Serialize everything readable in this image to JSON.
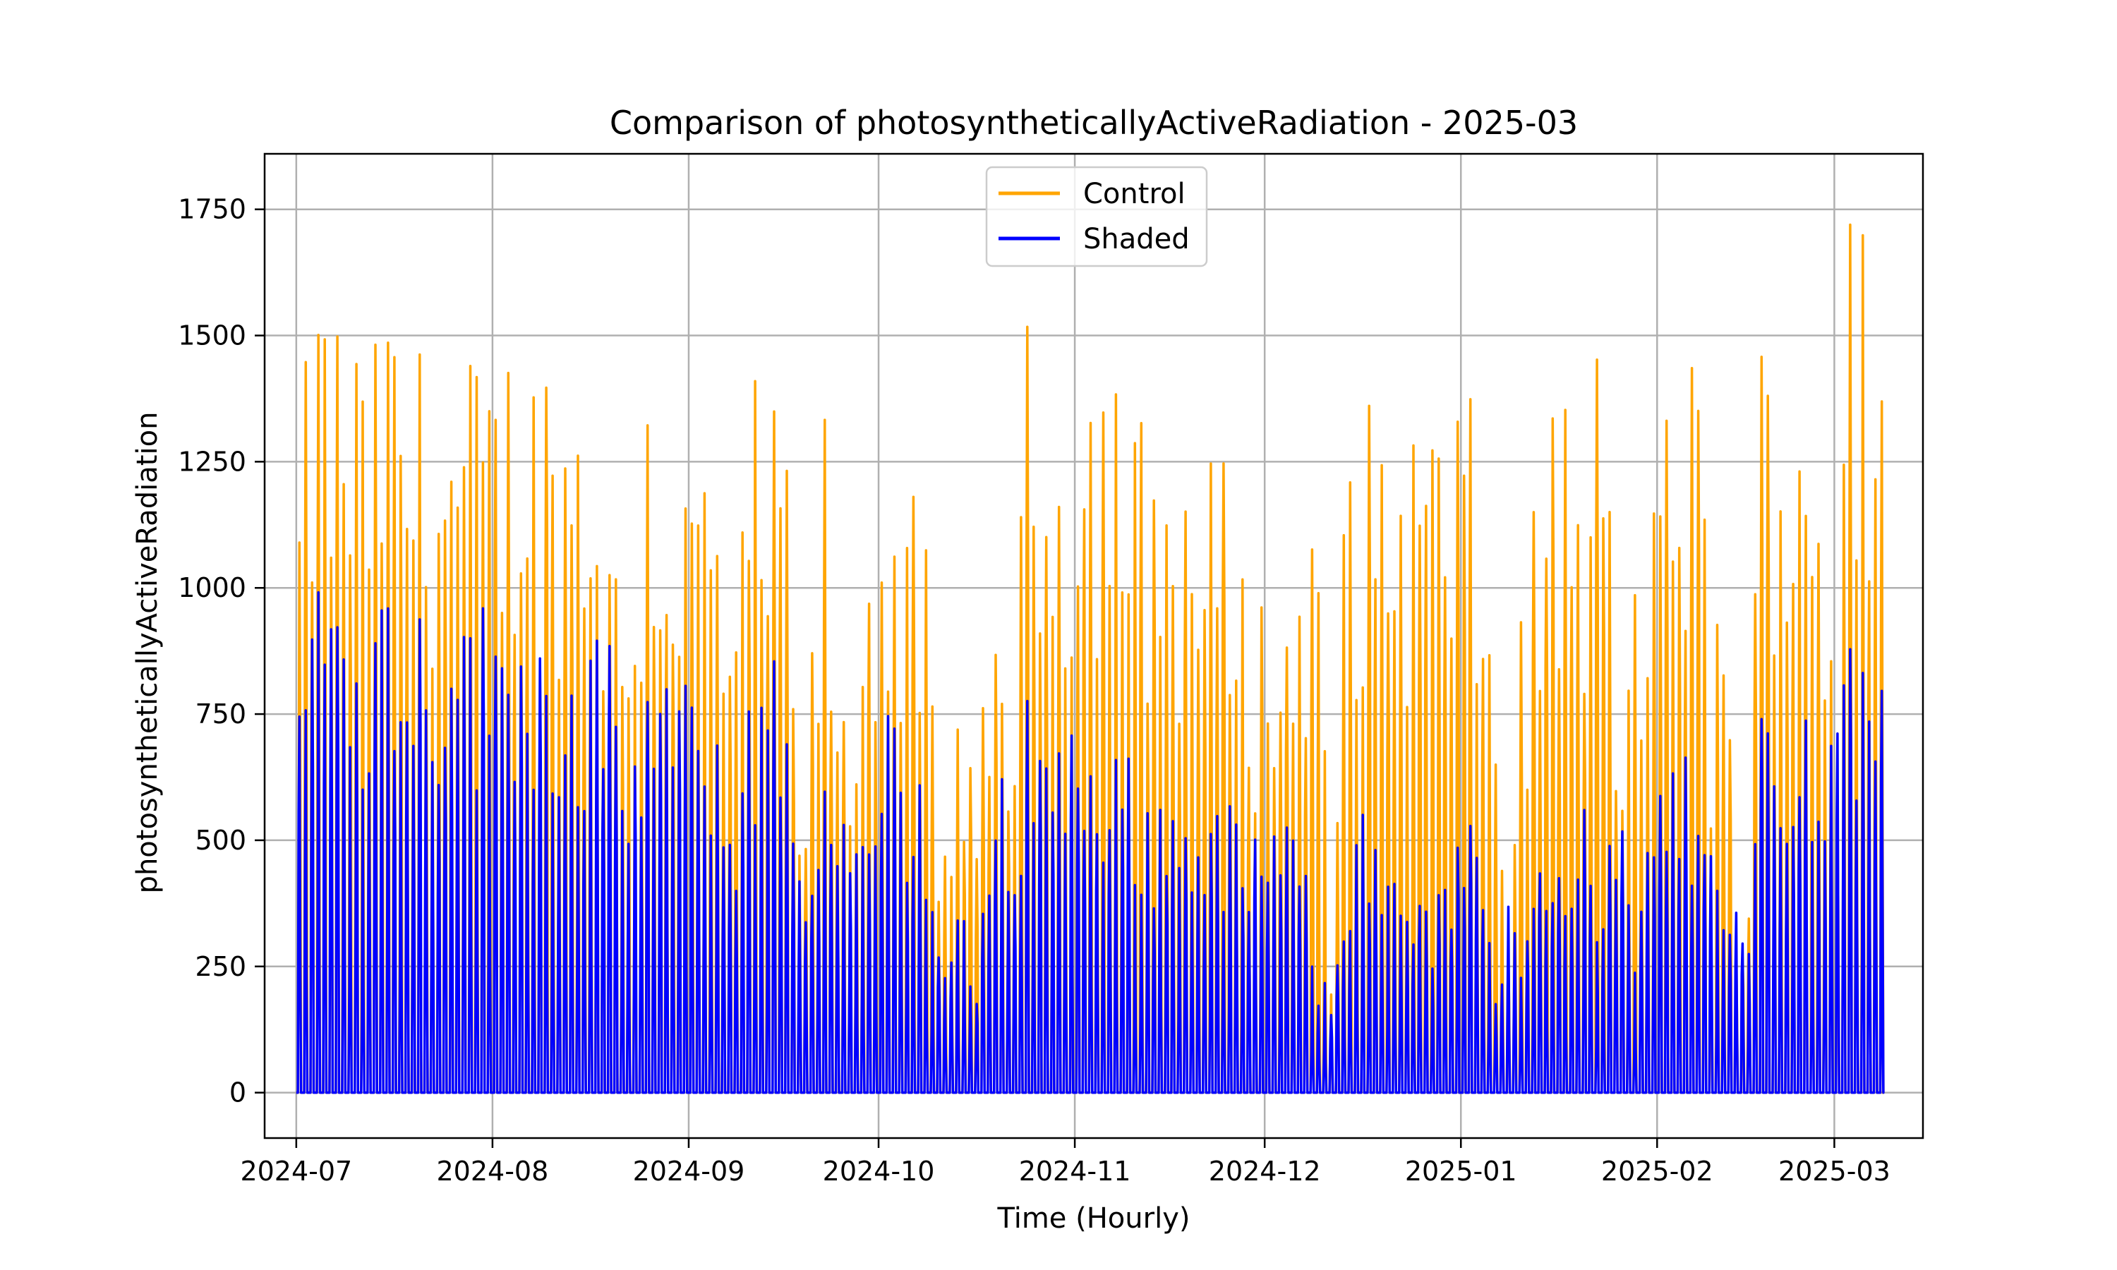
{
  "chart_data": {
    "type": "line",
    "title": "Comparison of photosyntheticallyActiveRadiation - 2025-03",
    "xlabel": "Time (Hourly)",
    "ylabel": "photosyntheticallyActiveRadiation",
    "xlim": [
      "2024-06-26",
      "2025-03-15"
    ],
    "ylim": [
      -90,
      1860
    ],
    "grid": true,
    "legend_position": "top-center",
    "x_ticks": [
      "2024-07",
      "2024-08",
      "2024-09",
      "2024-10",
      "2024-11",
      "2024-12",
      "2025-01",
      "2025-02",
      "2025-03"
    ],
    "y_ticks": [
      0,
      250,
      500,
      750,
      1000,
      1250,
      1500,
      1750
    ],
    "data_range": [
      "2024-07-01",
      "2025-03-08"
    ],
    "series": [
      {
        "name": "Control",
        "color": "#ffa500",
        "daily_peak_samples": [
          [
            "2024-07-01",
            1290
          ],
          [
            "2024-07-03",
            1610
          ],
          [
            "2024-07-05",
            1645
          ],
          [
            "2024-07-07",
            1590
          ],
          [
            "2024-07-09",
            1575
          ],
          [
            "2024-07-11",
            1490
          ],
          [
            "2024-07-13",
            1500
          ],
          [
            "2024-07-14",
            1670
          ],
          [
            "2024-07-16",
            1565
          ],
          [
            "2024-07-18",
            1530
          ],
          [
            "2024-07-20",
            1500
          ],
          [
            "2024-07-22",
            1520
          ],
          [
            "2024-07-24",
            1480
          ],
          [
            "2024-07-26",
            1450
          ],
          [
            "2024-07-28",
            1470
          ],
          [
            "2024-07-30",
            1490
          ],
          [
            "2024-08-01",
            1470
          ],
          [
            "2024-08-03",
            1520
          ],
          [
            "2024-08-05",
            1560
          ],
          [
            "2024-08-07",
            1510
          ],
          [
            "2024-08-09",
            1515
          ],
          [
            "2024-08-11",
            1480
          ],
          [
            "2024-08-13",
            1460
          ],
          [
            "2024-08-15",
            1485
          ],
          [
            "2024-08-17",
            1450
          ],
          [
            "2024-08-19",
            1185
          ],
          [
            "2024-08-21",
            1050
          ],
          [
            "2024-08-23",
            1165
          ],
          [
            "2024-08-25",
            1520
          ],
          [
            "2024-08-27",
            1325
          ],
          [
            "2024-08-29",
            1340
          ],
          [
            "2024-08-31",
            1260
          ],
          [
            "2024-09-02",
            1310
          ],
          [
            "2024-09-04",
            1340
          ],
          [
            "2024-09-06",
            1120
          ],
          [
            "2024-09-08",
            900
          ],
          [
            "2024-09-10",
            1440
          ],
          [
            "2024-09-12",
            1410
          ],
          [
            "2024-09-14",
            1355
          ],
          [
            "2024-09-16",
            1365
          ],
          [
            "2024-09-18",
            530
          ],
          [
            "2024-09-20",
            890
          ],
          [
            "2024-09-22",
            1390
          ],
          [
            "2024-09-24",
            780
          ],
          [
            "2024-09-26",
            810
          ],
          [
            "2024-09-28",
            1040
          ],
          [
            "2024-09-30",
            1290
          ],
          [
            "2024-10-02",
            1320
          ],
          [
            "2024-10-04",
            1215
          ],
          [
            "2024-10-06",
            1185
          ],
          [
            "2024-10-08",
            1110
          ],
          [
            "2024-10-10",
            440
          ],
          [
            "2024-10-12",
            640
          ],
          [
            "2024-10-14",
            900
          ],
          [
            "2024-10-16",
            510
          ],
          [
            "2024-10-18",
            1025
          ],
          [
            "2024-10-20",
            1015
          ],
          [
            "2024-10-22",
            830
          ],
          [
            "2024-10-24",
            1530
          ],
          [
            "2024-10-26",
            1580
          ],
          [
            "2024-10-28",
            1410
          ],
          [
            "2024-10-30",
            1435
          ],
          [
            "2024-11-01",
            1480
          ],
          [
            "2024-11-03",
            1530
          ],
          [
            "2024-11-05",
            1560
          ],
          [
            "2024-11-07",
            1540
          ],
          [
            "2024-11-09",
            1330
          ],
          [
            "2024-11-11",
            1365
          ],
          [
            "2024-11-13",
            1300
          ],
          [
            "2024-11-15",
            1335
          ],
          [
            "2024-11-17",
            1295
          ],
          [
            "2024-11-19",
            1290
          ],
          [
            "2024-11-21",
            1245
          ],
          [
            "2024-11-23",
            1290
          ],
          [
            "2024-11-25",
            1300
          ],
          [
            "2024-11-27",
            1095
          ],
          [
            "2024-11-29",
            1000
          ],
          [
            "2024-12-01",
            1015
          ],
          [
            "2024-12-03",
            985
          ],
          [
            "2024-12-05",
            1055
          ],
          [
            "2024-12-07",
            1245
          ],
          [
            "2024-12-09",
            1120
          ],
          [
            "2024-12-11",
            270
          ],
          [
            "2024-12-13",
            1220
          ],
          [
            "2024-12-15",
            1385
          ],
          [
            "2024-12-17",
            1375
          ],
          [
            "2024-12-19",
            1380
          ],
          [
            "2024-12-21",
            1380
          ],
          [
            "2024-12-23",
            1360
          ],
          [
            "2024-12-25",
            1395
          ],
          [
            "2024-12-27",
            1390
          ],
          [
            "2024-12-29",
            1385
          ],
          [
            "2024-12-31",
            1390
          ],
          [
            "2025-01-02",
            1375
          ],
          [
            "2025-01-04",
            1215
          ],
          [
            "2025-01-06",
            780
          ],
          [
            "2025-01-08",
            395
          ],
          [
            "2025-01-10",
            1010
          ],
          [
            "2025-01-12",
            1155
          ],
          [
            "2025-01-14",
            1380
          ],
          [
            "2025-01-16",
            1385
          ],
          [
            "2025-01-18",
            1470
          ],
          [
            "2025-01-20",
            1120
          ],
          [
            "2025-01-22",
            1525
          ],
          [
            "2025-01-24",
            1375
          ],
          [
            "2025-01-26",
            580
          ],
          [
            "2025-01-28",
            1215
          ],
          [
            "2025-01-30",
            1150
          ],
          [
            "2025-02-01",
            1225
          ],
          [
            "2025-02-03",
            1515
          ],
          [
            "2025-02-05",
            1520
          ],
          [
            "2025-02-07",
            1505
          ],
          [
            "2025-02-09",
            890
          ],
          [
            "2025-02-11",
            1155
          ],
          [
            "2025-02-13",
            430
          ],
          [
            "2025-02-15",
            395
          ],
          [
            "2025-02-17",
            1660
          ],
          [
            "2025-02-19",
            1560
          ],
          [
            "2025-02-21",
            1425
          ],
          [
            "2025-02-23",
            1565
          ],
          [
            "2025-02-25",
            1570
          ],
          [
            "2025-02-27",
            1235
          ],
          [
            "2025-03-01",
            855
          ],
          [
            "2025-03-03",
            1770
          ],
          [
            "2025-03-05",
            1765
          ],
          [
            "2025-03-07",
            1750
          ],
          [
            "2025-03-08",
            1685
          ]
        ]
      },
      {
        "name": "Shaded",
        "color": "#0000ff",
        "daily_peak_samples": [
          [
            "2024-07-01",
            850
          ],
          [
            "2024-07-03",
            1075
          ],
          [
            "2024-07-05",
            1150
          ],
          [
            "2024-07-07",
            1070
          ],
          [
            "2024-07-09",
            1055
          ],
          [
            "2024-07-11",
            1000
          ],
          [
            "2024-07-13",
            995
          ],
          [
            "2024-07-14",
            1095
          ],
          [
            "2024-07-16",
            1050
          ],
          [
            "2024-07-18",
            1020
          ],
          [
            "2024-07-20",
            1000
          ],
          [
            "2024-07-22",
            995
          ],
          [
            "2024-07-24",
            975
          ],
          [
            "2024-07-26",
            1140
          ],
          [
            "2024-07-28",
            955
          ],
          [
            "2024-07-30",
            985
          ],
          [
            "2024-08-01",
            950
          ],
          [
            "2024-08-03",
            1010
          ],
          [
            "2024-08-05",
            1015
          ],
          [
            "2024-08-07",
            975
          ],
          [
            "2024-08-09",
            930
          ],
          [
            "2024-08-11",
            905
          ],
          [
            "2024-08-13",
            910
          ],
          [
            "2024-08-15",
            885
          ],
          [
            "2024-08-17",
            935
          ],
          [
            "2024-08-19",
            895
          ],
          [
            "2024-08-21",
            610
          ],
          [
            "2024-08-23",
            780
          ],
          [
            "2024-08-25",
            875
          ],
          [
            "2024-08-27",
            885
          ],
          [
            "2024-08-29",
            850
          ],
          [
            "2024-08-31",
            820
          ],
          [
            "2024-09-02",
            830
          ],
          [
            "2024-09-04",
            790
          ],
          [
            "2024-09-06",
            600
          ],
          [
            "2024-09-08",
            640
          ],
          [
            "2024-09-10",
            885
          ],
          [
            "2024-09-12",
            820
          ],
          [
            "2024-09-14",
            885
          ],
          [
            "2024-09-16",
            795
          ],
          [
            "2024-09-18",
            500
          ],
          [
            "2024-09-20",
            570
          ],
          [
            "2024-09-22",
            725
          ],
          [
            "2024-09-24",
            490
          ],
          [
            "2024-09-26",
            675
          ],
          [
            "2024-09-28",
            500
          ],
          [
            "2024-09-30",
            505
          ],
          [
            "2024-10-02",
            845
          ],
          [
            "2024-10-04",
            685
          ],
          [
            "2024-10-06",
            620
          ],
          [
            "2024-10-08",
            635
          ],
          [
            "2024-10-10",
            320
          ],
          [
            "2024-10-12",
            315
          ],
          [
            "2024-10-14",
            430
          ],
          [
            "2024-10-16",
            180
          ],
          [
            "2024-10-18",
            545
          ],
          [
            "2024-10-20",
            680
          ],
          [
            "2024-10-22",
            545
          ],
          [
            "2024-10-24",
            840
          ],
          [
            "2024-10-26",
            845
          ],
          [
            "2024-10-28",
            700
          ],
          [
            "2024-10-30",
            765
          ],
          [
            "2024-11-01",
            730
          ],
          [
            "2024-11-03",
            720
          ],
          [
            "2024-11-05",
            720
          ],
          [
            "2024-11-07",
            710
          ],
          [
            "2024-11-09",
            675
          ],
          [
            "2024-11-11",
            620
          ],
          [
            "2024-11-13",
            600
          ],
          [
            "2024-11-15",
            615
          ],
          [
            "2024-11-17",
            610
          ],
          [
            "2024-11-19",
            590
          ],
          [
            "2024-11-21",
            595
          ],
          [
            "2024-11-23",
            595
          ],
          [
            "2024-11-25",
            595
          ],
          [
            "2024-11-27",
            480
          ],
          [
            "2024-11-29",
            540
          ],
          [
            "2024-12-01",
            575
          ],
          [
            "2024-12-03",
            550
          ],
          [
            "2024-12-05",
            535
          ],
          [
            "2024-12-07",
            460
          ],
          [
            "2024-12-09",
            280
          ],
          [
            "2024-12-11",
            250
          ],
          [
            "2024-12-13",
            485
          ],
          [
            "2024-12-15",
            570
          ],
          [
            "2024-12-17",
            555
          ],
          [
            "2024-12-19",
            460
          ],
          [
            "2024-12-21",
            525
          ],
          [
            "2024-12-23",
            500
          ],
          [
            "2024-12-25",
            395
          ],
          [
            "2024-12-27",
            375
          ],
          [
            "2024-12-29",
            430
          ],
          [
            "2024-12-31",
            545
          ],
          [
            "2025-01-02",
            535
          ],
          [
            "2025-01-04",
            500
          ],
          [
            "2025-01-06",
            225
          ],
          [
            "2025-01-08",
            440
          ],
          [
            "2025-01-10",
            300
          ],
          [
            "2025-01-12",
            540
          ],
          [
            "2025-01-14",
            555
          ],
          [
            "2025-01-16",
            555
          ],
          [
            "2025-01-18",
            565
          ],
          [
            "2025-01-20",
            560
          ],
          [
            "2025-01-22",
            375
          ],
          [
            "2025-01-24",
            555
          ],
          [
            "2025-01-26",
            555
          ],
          [
            "2025-01-28",
            270
          ],
          [
            "2025-01-30",
            545
          ],
          [
            "2025-02-01",
            645
          ],
          [
            "2025-02-03",
            680
          ],
          [
            "2025-02-05",
            665
          ],
          [
            "2025-02-07",
            680
          ],
          [
            "2025-02-09",
            630
          ],
          [
            "2025-02-11",
            505
          ],
          [
            "2025-02-13",
            385
          ],
          [
            "2025-02-15",
            350
          ],
          [
            "2025-02-17",
            795
          ],
          [
            "2025-02-19",
            745
          ],
          [
            "2025-02-21",
            600
          ],
          [
            "2025-02-23",
            780
          ],
          [
            "2025-02-25",
            825
          ],
          [
            "2025-02-27",
            680
          ],
          [
            "2025-03-01",
            950
          ],
          [
            "2025-03-03",
            955
          ],
          [
            "2025-03-05",
            965
          ],
          [
            "2025-03-07",
            980
          ],
          [
            "2025-03-08",
            965
          ]
        ]
      }
    ]
  }
}
